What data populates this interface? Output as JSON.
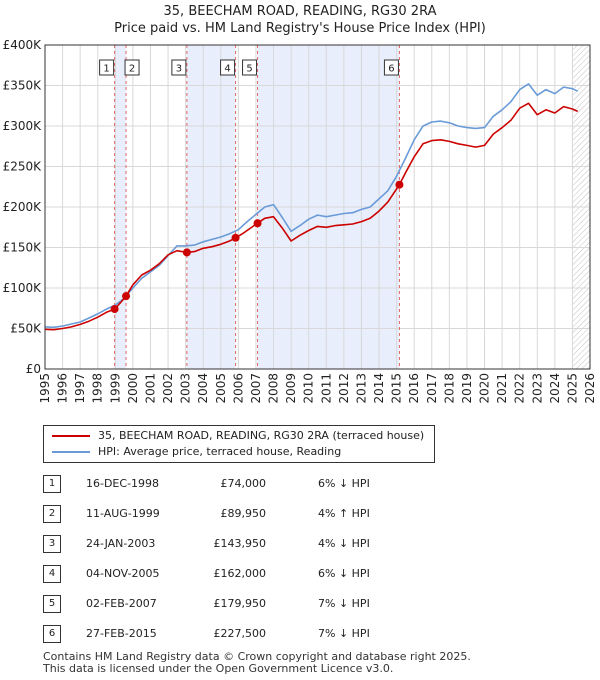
{
  "title": {
    "line1": "35, BEECHAM ROAD, READING, RG30 2RA",
    "line2": "Price paid vs. HM Land Registry's House Price Index (HPI)"
  },
  "legend": {
    "property_label": "35, BEECHAM ROAD, READING, RG30 2RA (terraced house)",
    "hpi_label": "HPI: Average price, terraced house, Reading"
  },
  "colors": {
    "property_line": "#cc0000",
    "hpi_line": "#6a9bd8",
    "shade": "#e8eefb",
    "grid": "#d8d8d8"
  },
  "sales": [
    {
      "num": "1",
      "date": "16-DEC-1998",
      "price": "£74,000",
      "hpi_delta": "6% ↓ HPI"
    },
    {
      "num": "2",
      "date": "11-AUG-1999",
      "price": "£89,950",
      "hpi_delta": "4% ↑ HPI"
    },
    {
      "num": "3",
      "date": "24-JAN-2003",
      "price": "£143,950",
      "hpi_delta": "4% ↓ HPI"
    },
    {
      "num": "4",
      "date": "04-NOV-2005",
      "price": "£162,000",
      "hpi_delta": "6% ↓ HPI"
    },
    {
      "num": "5",
      "date": "02-FEB-2007",
      "price": "£179,950",
      "hpi_delta": "7% ↓ HPI"
    },
    {
      "num": "6",
      "date": "27-FEB-2015",
      "price": "£227,500",
      "hpi_delta": "7% ↓ HPI"
    }
  ],
  "footer": {
    "line1": "Contains HM Land Registry data © Crown copyright and database right 2025.",
    "line2": "This data is licensed under the Open Government Licence v3.0."
  },
  "chart_data": {
    "type": "line",
    "title": "35, BEECHAM ROAD, READING, RG30 2RA — Price paid vs. HM Land Registry's House Price Index (HPI)",
    "xlabel": "",
    "ylabel": "",
    "xlim": [
      1995,
      2026
    ],
    "ylim": [
      0,
      400000
    ],
    "y_ticks": [
      0,
      50000,
      100000,
      150000,
      200000,
      250000,
      300000,
      350000,
      400000
    ],
    "y_tick_labels": [
      "£0",
      "£50K",
      "£100K",
      "£150K",
      "£200K",
      "£250K",
      "£300K",
      "£350K",
      "£400K"
    ],
    "x_ticks": [
      1995,
      1996,
      1997,
      1998,
      1999,
      2000,
      2001,
      2002,
      2003,
      2004,
      2005,
      2006,
      2007,
      2008,
      2009,
      2010,
      2011,
      2012,
      2013,
      2014,
      2015,
      2016,
      2017,
      2018,
      2019,
      2020,
      2021,
      2022,
      2023,
      2024,
      2025,
      2026
    ],
    "grid": true,
    "shaded_ranges": [
      [
        1998.96,
        1999.61
      ],
      [
        2003.07,
        2005.84
      ],
      [
        2007.09,
        2015.16
      ]
    ],
    "forecast_hatch_from": 2025.0,
    "series": [
      {
        "name": "HPI: Average price, terraced house, Reading",
        "x": [
          1995.0,
          1995.5,
          1996.0,
          1996.5,
          1997.0,
          1997.5,
          1998.0,
          1998.5,
          1999.0,
          1999.5,
          2000.0,
          2000.5,
          2001.0,
          2001.5,
          2002.0,
          2002.5,
          2003.0,
          2003.5,
          2004.0,
          2004.5,
          2005.0,
          2005.5,
          2006.0,
          2006.5,
          2007.0,
          2007.5,
          2008.0,
          2008.5,
          2009.0,
          2009.5,
          2010.0,
          2010.5,
          2011.0,
          2011.5,
          2012.0,
          2012.5,
          2013.0,
          2013.5,
          2014.0,
          2014.5,
          2015.0,
          2015.5,
          2016.0,
          2016.5,
          2017.0,
          2017.5,
          2018.0,
          2018.5,
          2019.0,
          2019.5,
          2020.0,
          2020.5,
          2021.0,
          2021.5,
          2022.0,
          2022.5,
          2023.0,
          2023.5,
          2024.0,
          2024.5,
          2025.0,
          2025.3
        ],
        "values": [
          52000,
          51500,
          53000,
          55500,
          58000,
          63000,
          68000,
          74000,
          79000,
          87000,
          100000,
          112000,
          120000,
          128000,
          140000,
          152000,
          152000,
          153000,
          157000,
          160000,
          163000,
          167000,
          172000,
          182000,
          191000,
          200000,
          203000,
          187000,
          170000,
          177000,
          185000,
          190000,
          188000,
          190000,
          192000,
          193000,
          197000,
          200000,
          210000,
          220000,
          238000,
          260000,
          283000,
          300000,
          305000,
          306000,
          304000,
          300000,
          298000,
          297000,
          298000,
          312000,
          320000,
          330000,
          345000,
          352000,
          338000,
          345000,
          340000,
          348000,
          346000,
          343000
        ]
      },
      {
        "name": "35, BEECHAM ROAD, READING, RG30 2RA (terraced house)",
        "x": [
          1995.0,
          1995.5,
          1996.0,
          1996.5,
          1997.0,
          1997.5,
          1998.0,
          1998.5,
          1998.96,
          1999.3,
          1999.61,
          2000.0,
          2000.5,
          2001.0,
          2001.5,
          2002.0,
          2002.5,
          2003.07,
          2003.5,
          2004.0,
          2004.5,
          2005.0,
          2005.5,
          2005.84,
          2006.3,
          2007.09,
          2007.5,
          2008.0,
          2008.5,
          2009.0,
          2009.5,
          2010.0,
          2010.5,
          2011.0,
          2011.5,
          2012.0,
          2012.5,
          2013.0,
          2013.5,
          2014.0,
          2014.5,
          2015.16,
          2015.5,
          2016.0,
          2016.5,
          2017.0,
          2017.5,
          2018.0,
          2018.5,
          2019.0,
          2019.5,
          2020.0,
          2020.5,
          2021.0,
          2021.5,
          2022.0,
          2022.5,
          2023.0,
          2023.5,
          2024.0,
          2024.5,
          2025.0,
          2025.3
        ],
        "values": [
          49000,
          48500,
          50000,
          52000,
          55000,
          59000,
          64000,
          70000,
          74000,
          82000,
          89950,
          104000,
          116000,
          122000,
          130000,
          141000,
          146000,
          143950,
          145000,
          149000,
          151000,
          154000,
          158000,
          162000,
          168000,
          179950,
          186000,
          188000,
          174000,
          158000,
          165000,
          171000,
          176000,
          175000,
          177000,
          178000,
          179000,
          182000,
          186000,
          195000,
          206000,
          227500,
          242000,
          262000,
          278000,
          282000,
          283000,
          281000,
          278000,
          276000,
          274000,
          276000,
          290000,
          298000,
          307000,
          322000,
          328000,
          314000,
          320000,
          316000,
          324000,
          321000,
          318000
        ]
      }
    ],
    "sale_points": [
      {
        "label": "1",
        "x": 1998.96,
        "value": 74000
      },
      {
        "label": "2",
        "x": 1999.61,
        "value": 89950
      },
      {
        "label": "3",
        "x": 2003.07,
        "value": 143950
      },
      {
        "label": "4",
        "x": 2005.84,
        "value": 162000
      },
      {
        "label": "5",
        "x": 2007.09,
        "value": 179950
      },
      {
        "label": "6",
        "x": 2015.16,
        "value": 227500
      }
    ]
  }
}
